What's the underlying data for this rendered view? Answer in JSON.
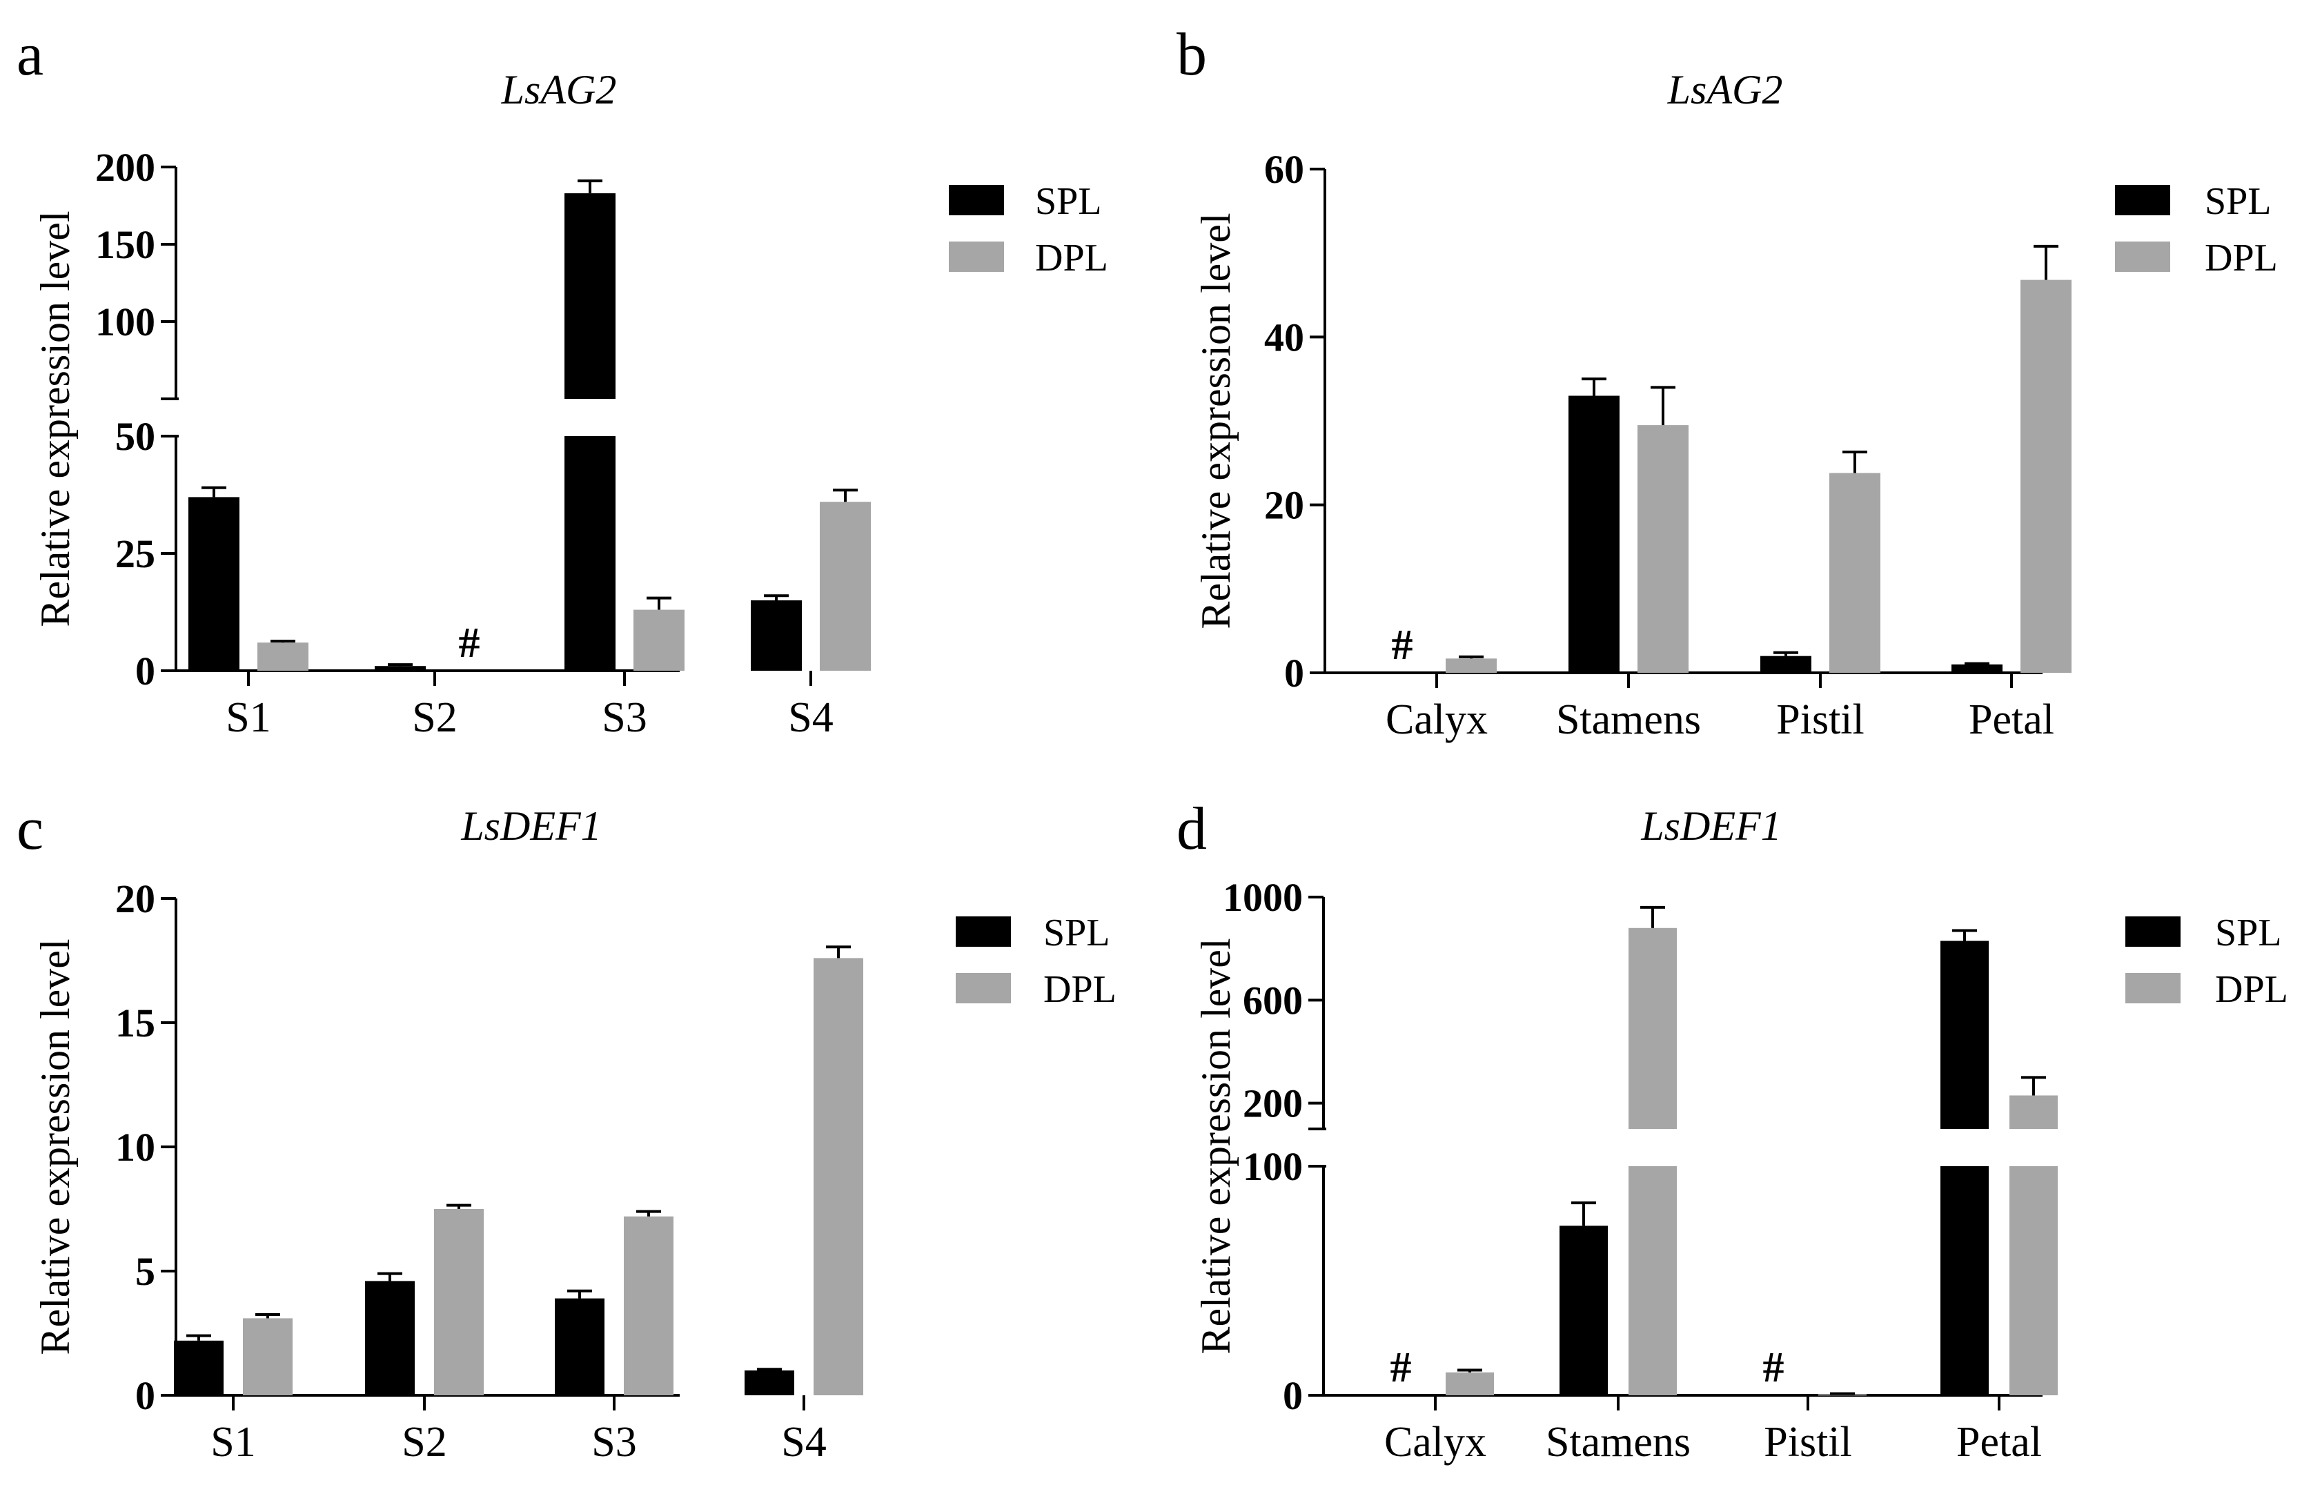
{
  "figure": {
    "panel_letters": [
      "a",
      "b",
      "c",
      "d"
    ]
  },
  "chart_data": [
    {
      "type": "bar",
      "panel": "a",
      "title": "LsAG2",
      "xlabel": "",
      "ylabel": "Relative expression level",
      "categories": [
        "S1",
        "S2",
        "S3",
        "S4"
      ],
      "series": [
        {
          "name": "SPL",
          "color": "#000000",
          "values": [
            37,
            1,
            183,
            15
          ],
          "errors": [
            2,
            0.3,
            8,
            1
          ]
        },
        {
          "name": "DPL",
          "color": "#a6a6a6",
          "values": [
            6,
            null,
            13,
            36
          ],
          "errors": [
            0.3,
            0,
            2.5,
            2.5
          ]
        }
      ],
      "not_detected_marks": [
        {
          "category": "S2",
          "series": "DPL",
          "label": "#"
        }
      ],
      "y_axis_break": {
        "lower": [
          0,
          50
        ],
        "upper": [
          50,
          200
        ]
      },
      "yticks_lower": [
        "0",
        "25",
        "50"
      ],
      "yticks_upper": [
        "50",
        "100",
        "150",
        "200"
      ],
      "legend_position": "top-right"
    },
    {
      "type": "bar",
      "panel": "b",
      "title": "LsAG2",
      "xlabel": "",
      "ylabel": "Relative expression level",
      "categories": [
        "Calyx",
        "Stamens",
        "Pistil",
        "Petal"
      ],
      "series": [
        {
          "name": "SPL",
          "color": "#000000",
          "values": [
            null,
            33,
            2,
            1
          ],
          "errors": [
            0,
            2,
            0.4,
            0.1
          ]
        },
        {
          "name": "DPL",
          "color": "#a6a6a6",
          "values": [
            1.7,
            29.5,
            23.8,
            46.8
          ],
          "errors": [
            0.2,
            4.5,
            2.5,
            4
          ]
        }
      ],
      "not_detected_marks": [
        {
          "category": "Calyx",
          "series": "SPL",
          "label": "#"
        }
      ],
      "ylim": [
        0,
        60
      ],
      "yticks": [
        "0",
        "20",
        "40",
        "60"
      ],
      "legend_position": "top-right"
    },
    {
      "type": "bar",
      "panel": "c",
      "title": "LsDEF1",
      "xlabel": "",
      "ylabel": "Relative expression level",
      "categories": [
        "S1",
        "S2",
        "S3",
        "S4"
      ],
      "series": [
        {
          "name": "SPL",
          "color": "#000000",
          "values": [
            2.2,
            4.6,
            3.9,
            1.0
          ],
          "errors": [
            0.2,
            0.3,
            0.3,
            0.05
          ]
        },
        {
          "name": "DPL",
          "color": "#a6a6a6",
          "values": [
            3.1,
            7.5,
            7.2,
            17.6
          ],
          "errors": [
            0.15,
            0.15,
            0.2,
            0.45
          ]
        }
      ],
      "not_detected_marks": [],
      "ylim": [
        0,
        20
      ],
      "yticks": [
        "0",
        "5",
        "10",
        "15",
        "20"
      ],
      "legend_position": "top-right"
    },
    {
      "type": "bar",
      "panel": "d",
      "title": "LsDEF1",
      "xlabel": "",
      "ylabel": "Relative expression level",
      "categories": [
        "Calyx",
        "Stamens",
        "Pistil",
        "Petal"
      ],
      "series": [
        {
          "name": "SPL",
          "color": "#000000",
          "values": [
            null,
            74,
            null,
            830
          ],
          "errors": [
            0,
            10,
            0,
            40
          ]
        },
        {
          "name": "DPL",
          "color": "#a6a6a6",
          "values": [
            10,
            880,
            0.5,
            230
          ],
          "errors": [
            1,
            80,
            0.2,
            70
          ]
        }
      ],
      "not_detected_marks": [
        {
          "category": "Calyx",
          "series": "SPL",
          "label": "#"
        },
        {
          "category": "Pistil",
          "series": "SPL",
          "label": "#"
        }
      ],
      "y_axis_break": {
        "lower": [
          0,
          100
        ],
        "upper": [
          100,
          1000
        ]
      },
      "yticks_lower": [
        "0",
        "100"
      ],
      "yticks_upper": [
        "200",
        "600",
        "1000"
      ],
      "legend_position": "top-right"
    }
  ]
}
